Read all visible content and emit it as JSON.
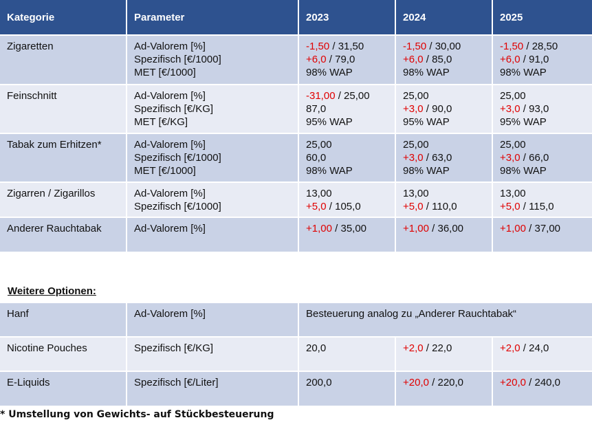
{
  "headers": [
    "Kategorie",
    "Parameter",
    "2023",
    "2024",
    "2025"
  ],
  "rows": [
    {
      "category": "Zigaretten",
      "params": [
        "Ad-Valorem [%]",
        "Spezifisch [€/1000]",
        "MET [€/1000]"
      ],
      "years": [
        [
          {
            "red": "-1,50",
            "rest": " / 31,50"
          },
          {
            "red": "+6,0",
            "rest": " / 79,0"
          },
          {
            "red": "",
            "rest": "98% WAP"
          }
        ],
        [
          {
            "red": "-1,50",
            "rest": " / 30,00"
          },
          {
            "red": "+6,0",
            "rest": " / 85,0"
          },
          {
            "red": "",
            "rest": "98% WAP"
          }
        ],
        [
          {
            "red": "-1,50",
            "rest": " / 28,50"
          },
          {
            "red": "+6,0",
            "rest": " / 91,0"
          },
          {
            "red": "",
            "rest": "98% WAP"
          }
        ]
      ]
    },
    {
      "category": "Feinschnitt",
      "params": [
        "Ad-Valorem [%]",
        "Spezifisch [€/KG]",
        "MET [€/KG]"
      ],
      "years": [
        [
          {
            "red": "-31,00",
            "rest": " / 25,00"
          },
          {
            "red": "",
            "rest": "87,0"
          },
          {
            "red": "",
            "rest": "95% WAP"
          }
        ],
        [
          {
            "red": "",
            "rest": "25,00"
          },
          {
            "red": "+3,0",
            "rest": " / 90,0"
          },
          {
            "red": "",
            "rest": "95% WAP"
          }
        ],
        [
          {
            "red": "",
            "rest": "25,00"
          },
          {
            "red": "+3,0",
            "rest": " / 93,0"
          },
          {
            "red": "",
            "rest": "95% WAP"
          }
        ]
      ]
    },
    {
      "category": "Tabak zum Erhitzen*",
      "params": [
        "Ad-Valorem [%]",
        "Spezifisch [€/1000]",
        "MET [€/1000]"
      ],
      "years": [
        [
          {
            "red": "",
            "rest": "25,00"
          },
          {
            "red": "",
            "rest": "60,0"
          },
          {
            "red": "",
            "rest": "98% WAP"
          }
        ],
        [
          {
            "red": "",
            "rest": "25,00"
          },
          {
            "red": "+3,0",
            "rest": " / 63,0"
          },
          {
            "red": "",
            "rest": "98% WAP"
          }
        ],
        [
          {
            "red": "",
            "rest": "25,00"
          },
          {
            "red": "+3,0",
            "rest": " / 66,0"
          },
          {
            "red": "",
            "rest": "98% WAP"
          }
        ]
      ]
    },
    {
      "category": "Zigarren / Zigarillos",
      "params": [
        "Ad-Valorem [%]",
        "Spezifisch [€/1000]"
      ],
      "years": [
        [
          {
            "red": "",
            "rest": "13,00"
          },
          {
            "red": "+5,0",
            "rest": " / 105,0"
          }
        ],
        [
          {
            "red": "",
            "rest": "13,00"
          },
          {
            "red": "+5,0",
            "rest": " / 110,0"
          }
        ],
        [
          {
            "red": "",
            "rest": "13,00"
          },
          {
            "red": "+5,0",
            "rest": " / 115,0"
          }
        ]
      ]
    },
    {
      "category": "Anderer Rauchtabak",
      "params": [
        "Ad-Valorem [%]"
      ],
      "years": [
        [
          {
            "red": "+1,00",
            "rest": " / 35,00"
          }
        ],
        [
          {
            "red": "+1,00",
            "rest": " / 36,00"
          }
        ],
        [
          {
            "red": "+1,00",
            "rest": " / 37,00"
          }
        ]
      ]
    }
  ],
  "options_title": "Weitere Optionen:",
  "options": [
    {
      "category": "Hanf",
      "param": "Ad-Valorem [%]",
      "span_text": "Besteuerung analog zu „Anderer Rauchtabak“"
    },
    {
      "category": "Nicotine Pouches",
      "param": "Spezifisch [€/KG]",
      "years": [
        {
          "red": "",
          "rest": "20,0"
        },
        {
          "red": "+2,0",
          "rest": " / 22,0"
        },
        {
          "red": "+2,0",
          "rest": " / 24,0"
        }
      ]
    },
    {
      "category": "E-Liquids",
      "param": "Spezifisch [€/Liter]",
      "years": [
        {
          "red": "",
          "rest": "200,0"
        },
        {
          "red": "+20,0",
          "rest": " / 220,0"
        },
        {
          "red": "+20,0",
          "rest": " / 240,0"
        }
      ]
    }
  ],
  "footnote": "* Umstellung von Gewichts- auf Stückbesteuerung"
}
